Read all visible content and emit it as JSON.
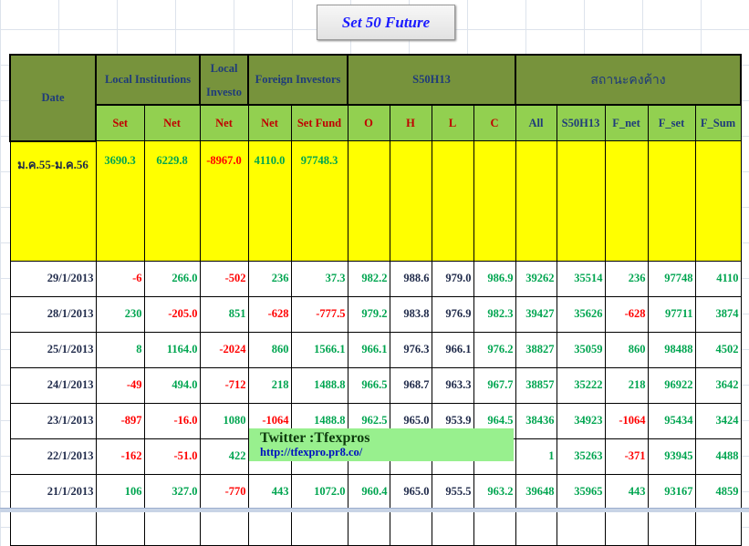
{
  "title_button": "Set 50  Future",
  "headers": {
    "date": "Date",
    "groups": [
      "Local Institutions",
      "Local Investo",
      "Foreign Investors",
      "S50H13",
      "สถานะคงค้าง"
    ],
    "columns": [
      "Set",
      "Net",
      "Net",
      "Net",
      "Set Fund",
      "O",
      "H",
      "L",
      "C",
      "All",
      "S50H13",
      "F_net",
      "F_set",
      "F_Sum"
    ]
  },
  "summary": {
    "date": "ม.ค.55-ม.ค.56",
    "values": [
      "3690.3",
      "6229.8",
      "-8967.0",
      "4110.0",
      "97748.3",
      "",
      "",
      "",
      "",
      "",
      "",
      "",
      "",
      ""
    ]
  },
  "rows": [
    {
      "date": "29/1/2013",
      "values": [
        "-6",
        "266.0",
        "-502",
        "236",
        "37.3",
        "982.2",
        "988.6",
        "979.0",
        "986.9",
        "39262",
        "35514",
        "236",
        "97748",
        "4110"
      ]
    },
    {
      "date": "28/1/2013",
      "values": [
        "230",
        "-205.0",
        "851",
        "-628",
        "-777.5",
        "979.2",
        "983.8",
        "976.9",
        "982.3",
        "39427",
        "35626",
        "-628",
        "97711",
        "3874"
      ]
    },
    {
      "date": "25/1/2013",
      "values": [
        "8",
        "1164.0",
        "-2024",
        "860",
        "1566.1",
        "966.1",
        "976.3",
        "966.1",
        "976.2",
        "38827",
        "35059",
        "860",
        "98488",
        "4502"
      ]
    },
    {
      "date": "24/1/2013",
      "values": [
        "-49",
        "494.0",
        "-712",
        "218",
        "1488.8",
        "966.5",
        "968.7",
        "963.3",
        "967.7",
        "38857",
        "35222",
        "218",
        "96922",
        "3642"
      ]
    },
    {
      "date": "23/1/2013",
      "values": [
        "-897",
        "-16.0",
        "1080",
        "-1064",
        "1488.8",
        "962.5",
        "965.0",
        "953.9",
        "964.5",
        "38436",
        "34923",
        "-1064",
        "95434",
        "3424"
      ]
    },
    {
      "date": "22/1/2013",
      "values": [
        "-162",
        "-51.0",
        "422",
        "",
        "",
        "",
        "",
        "",
        "",
        "1",
        "35263",
        "-371",
        "93945",
        "4488"
      ]
    },
    {
      "date": "21/1/2013",
      "values": [
        "106",
        "327.0",
        "-770",
        "443",
        "1072.0",
        "960.4",
        "965.0",
        "955.5",
        "963.2",
        "39648",
        "35965",
        "443",
        "93167",
        "4859"
      ]
    }
  ],
  "overlay": {
    "twitter": "Twitter :Tfexpros",
    "url": "http://tfexpro.pr8.co/"
  },
  "colors": {
    "header_dark": "#77933c",
    "header_light": "#92d050",
    "summary": "#ffff00",
    "positive": "#00a550",
    "negative": "#ff0000",
    "overlay": "#98f08e"
  }
}
